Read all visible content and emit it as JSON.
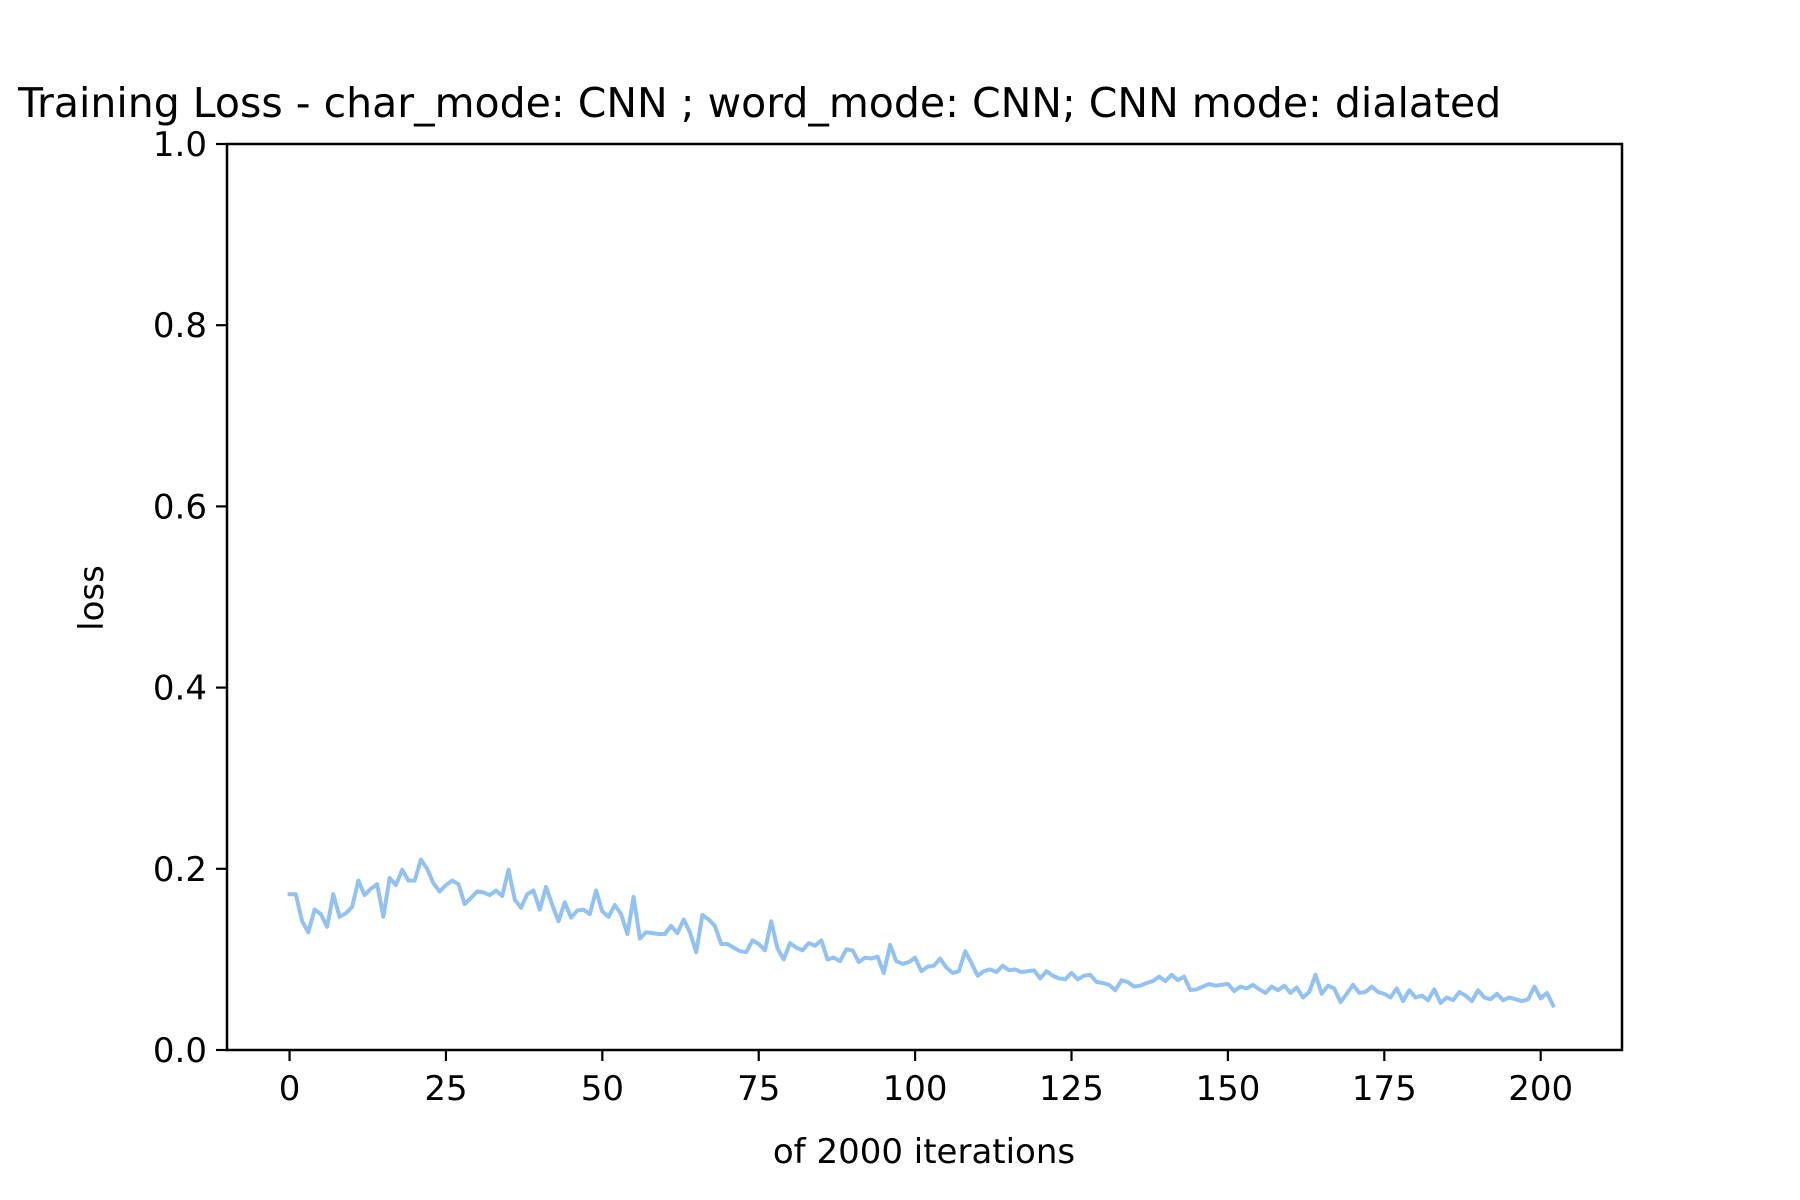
{
  "chart_data": {
    "type": "line",
    "title": "Training Loss - char_mode: CNN ; word_mode: CNN; CNN mode: dialated",
    "xlabel": "of 2000 iterations",
    "ylabel": "loss",
    "xlim": [
      -10,
      213
    ],
    "ylim": [
      0.0,
      1.0
    ],
    "xticks": [
      0,
      25,
      50,
      75,
      100,
      125,
      150,
      175,
      200
    ],
    "xtick_labels": [
      "0",
      "25",
      "50",
      "75",
      "100",
      "125",
      "150",
      "175",
      "200"
    ],
    "yticks": [
      0.0,
      0.2,
      0.4,
      0.6,
      0.8,
      1.0
    ],
    "ytick_labels": [
      "0.0",
      "0.2",
      "0.4",
      "0.6",
      "0.8",
      "1.0"
    ],
    "grid": false,
    "series": [
      {
        "color": "#92c2f4",
        "x_start": 0,
        "x_step": 1,
        "values": [
          0.172,
          0.172,
          0.142,
          0.13,
          0.155,
          0.15,
          0.136,
          0.172,
          0.147,
          0.151,
          0.158,
          0.187,
          0.171,
          0.178,
          0.183,
          0.147,
          0.19,
          0.182,
          0.199,
          0.187,
          0.187,
          0.21,
          0.2,
          0.184,
          0.175,
          0.182,
          0.187,
          0.183,
          0.161,
          0.168,
          0.175,
          0.174,
          0.171,
          0.176,
          0.17,
          0.199,
          0.166,
          0.157,
          0.172,
          0.176,
          0.155,
          0.18,
          0.16,
          0.142,
          0.163,
          0.146,
          0.154,
          0.155,
          0.15,
          0.176,
          0.153,
          0.147,
          0.16,
          0.15,
          0.128,
          0.169,
          0.123,
          0.13,
          0.129,
          0.128,
          0.128,
          0.137,
          0.129,
          0.144,
          0.13,
          0.108,
          0.149,
          0.144,
          0.137,
          0.117,
          0.117,
          0.113,
          0.109,
          0.108,
          0.121,
          0.117,
          0.11,
          0.142,
          0.112,
          0.1,
          0.118,
          0.113,
          0.11,
          0.118,
          0.115,
          0.121,
          0.1,
          0.102,
          0.098,
          0.111,
          0.11,
          0.097,
          0.102,
          0.101,
          0.103,
          0.085,
          0.116,
          0.098,
          0.095,
          0.097,
          0.102,
          0.087,
          0.092,
          0.093,
          0.101,
          0.091,
          0.085,
          0.087,
          0.109,
          0.096,
          0.082,
          0.087,
          0.089,
          0.086,
          0.093,
          0.088,
          0.089,
          0.086,
          0.087,
          0.088,
          0.079,
          0.087,
          0.082,
          0.079,
          0.078,
          0.085,
          0.078,
          0.082,
          0.083,
          0.075,
          0.074,
          0.072,
          0.066,
          0.077,
          0.075,
          0.07,
          0.071,
          0.074,
          0.076,
          0.081,
          0.076,
          0.083,
          0.077,
          0.081,
          0.066,
          0.067,
          0.07,
          0.073,
          0.071,
          0.072,
          0.073,
          0.065,
          0.07,
          0.068,
          0.072,
          0.067,
          0.063,
          0.07,
          0.066,
          0.071,
          0.063,
          0.069,
          0.058,
          0.064,
          0.083,
          0.062,
          0.071,
          0.068,
          0.053,
          0.062,
          0.072,
          0.063,
          0.064,
          0.07,
          0.064,
          0.062,
          0.058,
          0.068,
          0.054,
          0.066,
          0.058,
          0.06,
          0.055,
          0.067,
          0.052,
          0.058,
          0.055,
          0.064,
          0.06,
          0.054,
          0.066,
          0.058,
          0.056,
          0.062,
          0.055,
          0.058,
          0.056,
          0.054,
          0.056,
          0.07,
          0.057,
          0.063,
          0.049
        ]
      }
    ]
  }
}
